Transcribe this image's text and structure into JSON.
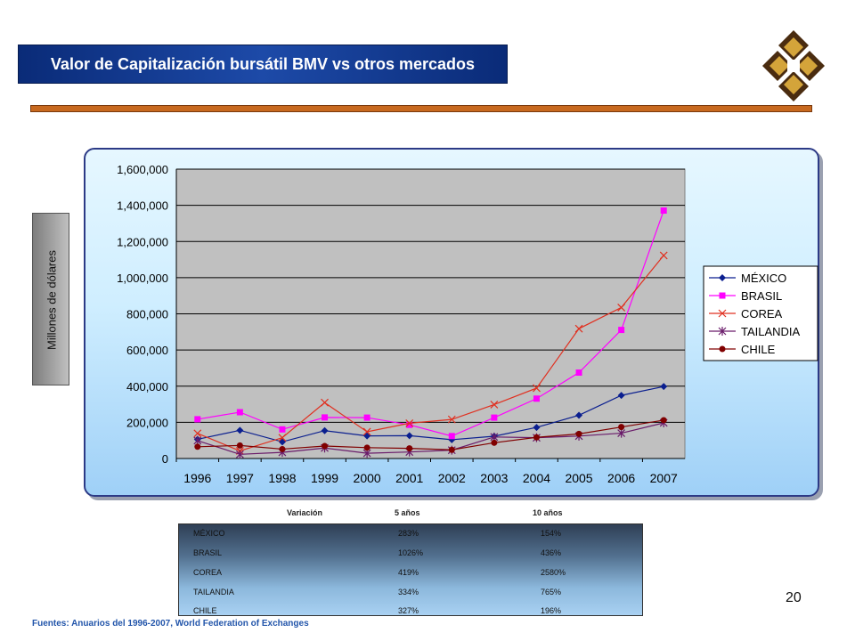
{
  "header": {
    "title": "Valor de Capitalización bursátil BMV vs otros mercados"
  },
  "ylabel": "Millones de dólares",
  "chart_data": {
    "type": "line",
    "title": "",
    "xlabel": "",
    "ylabel": "Millones de dólares",
    "x": [
      "1996",
      "1997",
      "1998",
      "1999",
      "2000",
      "2001",
      "2002",
      "2003",
      "2004",
      "2005",
      "2006",
      "2007"
    ],
    "ylim": [
      0,
      1600000
    ],
    "yticks": [
      0,
      200000,
      400000,
      600000,
      800000,
      1000000,
      1200000,
      1400000,
      1600000
    ],
    "ytick_labels": [
      "0",
      "200,000",
      "400,000",
      "600,000",
      "800,000",
      "1,000,000",
      "1,200,000",
      "1,400,000",
      "1,600,000"
    ],
    "grid": true,
    "legend_position": "right",
    "series": [
      {
        "name": "MÉXICO",
        "color": "#0b1f8f",
        "marker": "diamond",
        "values": [
          106000,
          156000,
          92000,
          154000,
          125000,
          126000,
          104000,
          123000,
          172000,
          239000,
          349000,
          398000
        ]
      },
      {
        "name": "BRASIL",
        "color": "#ff00ff",
        "marker": "square",
        "values": [
          217000,
          256000,
          161000,
          227000,
          226000,
          186000,
          124000,
          226000,
          331000,
          475000,
          711000,
          1371000
        ]
      },
      {
        "name": "COREA",
        "color": "#e03020",
        "marker": "x",
        "values": [
          139000,
          42000,
          115000,
          309000,
          148000,
          195000,
          216000,
          298000,
          389000,
          718000,
          835000,
          1123000
        ]
      },
      {
        "name": "TAILANDIA",
        "color": "#6a1b6a",
        "marker": "star",
        "values": [
          99000,
          23000,
          34000,
          58000,
          29000,
          36000,
          46000,
          119000,
          115000,
          124000,
          140000,
          197000
        ]
      },
      {
        "name": "CHILE",
        "color": "#800000",
        "marker": "circle",
        "values": [
          65000,
          72000,
          52000,
          69000,
          60000,
          56000,
          48000,
          87000,
          117000,
          136000,
          174000,
          212000
        ]
      }
    ]
  },
  "table": {
    "headers": {
      "variacion": "Variación",
      "five": "5 años",
      "ten": "10 años"
    },
    "rows": [
      {
        "country": "MÉXICO",
        "five": "283%",
        "ten": "154%"
      },
      {
        "country": "BRASIL",
        "five": "1026%",
        "ten": "436%"
      },
      {
        "country": "COREA",
        "five": "419%",
        "ten": "2580%"
      },
      {
        "country": "TAILANDIA",
        "five": "334%",
        "ten": "765%"
      },
      {
        "country": "CHILE",
        "five": "327%",
        "ten": "196%"
      }
    ]
  },
  "source": "Fuentes: Anuarios del 1996-2007, World Federation of Exchanges",
  "page_number": "20"
}
